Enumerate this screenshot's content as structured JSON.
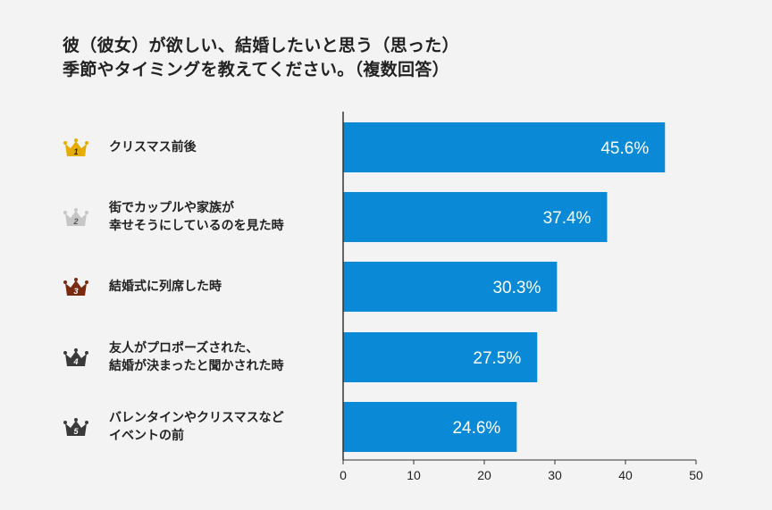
{
  "chart_data": {
    "type": "bar",
    "orientation": "horizontal",
    "title_lines": [
      "彼（彼女）が欲しい、結婚したいと思う（思った）",
      "季節やタイミングを教えてください。（複数回答）"
    ],
    "categories": [
      "クリスマス前後",
      "街でカップルや家族が\n幸せそうにしているのを見た時",
      "結婚式に列席した時",
      "友人がプロポーズされた、\n結婚が決まったと聞かされた時",
      "バレンタインやクリスマスなど\nイベントの前"
    ],
    "ranks": [
      "1",
      "2",
      "3",
      "4",
      "5"
    ],
    "values": [
      45.6,
      37.4,
      30.3,
      27.5,
      24.6
    ],
    "data_labels": [
      "45.6%",
      "37.4%",
      "30.3%",
      "27.5%",
      "24.6%"
    ],
    "xlim": [
      0,
      50
    ],
    "xticks": [
      "0",
      "10",
      "20",
      "30",
      "40",
      "50"
    ],
    "xlabel": "",
    "ylabel": "",
    "grid": false,
    "colors": {
      "bar": "#0a8ad6",
      "rank_crowns": [
        "#e6ad00",
        "#c6c6c6",
        "#7b2a10",
        "#3a3a3a",
        "#3a3a3a"
      ]
    }
  }
}
